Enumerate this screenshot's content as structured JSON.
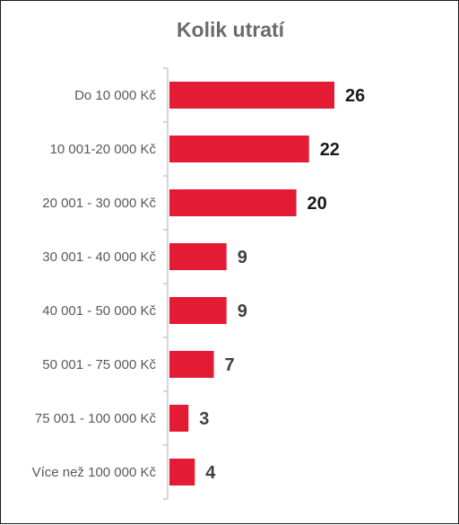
{
  "chart_data": {
    "type": "bar",
    "orientation": "horizontal",
    "title": "Kolik utratí",
    "xlabel": "",
    "ylabel": "",
    "categories": [
      "Do 10 000 Kč",
      "10 001-20 000 Kč",
      "20 001 - 30 000 Kč",
      "30 001 - 40 000 Kč",
      "40 001 - 50 000 Kč",
      "50 001 - 75 000 Kč",
      "75 001 - 100 000 Kč",
      "Více než 100 000 Kč"
    ],
    "values": [
      26,
      22,
      20,
      9,
      9,
      7,
      3,
      4
    ],
    "xlim": [
      0,
      26
    ],
    "grid": false,
    "legend": "none",
    "data_labels": true,
    "colors": {
      "bar": "#e31b35",
      "title": "#6b6b6b",
      "category_label": "#595959",
      "value_label_large": "#1a1a1a",
      "value_label_small": "#404040",
      "axis": "#c8c8c8"
    }
  }
}
